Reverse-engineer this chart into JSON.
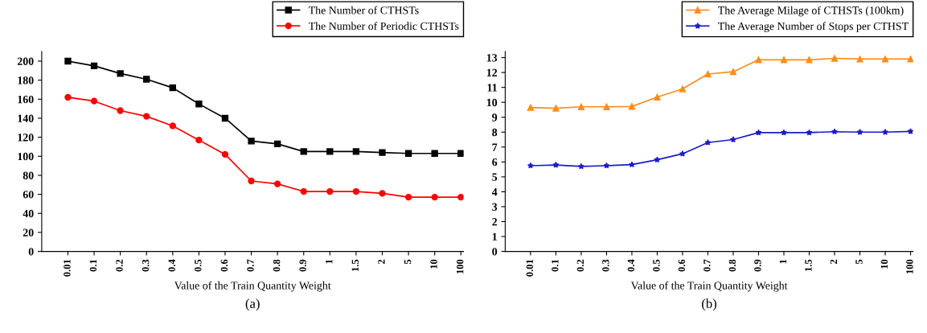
{
  "chart_data": [
    {
      "type": "line",
      "xlabel": "Value of the Train Quantity Weight",
      "annotations": [
        "(a)"
      ],
      "categories": [
        "0.01",
        "0.1",
        "0.2",
        "0.3",
        "0.4",
        "0.5",
        "0.6",
        "0.7",
        "0.8",
        "0.9",
        "1",
        "1.5",
        "2",
        "5",
        "10",
        "100"
      ],
      "series": [
        {
          "name": "The Number of CTHSTs",
          "color": "#000000",
          "marker": "square",
          "values": [
            200,
            195,
            187,
            181,
            172,
            155,
            140,
            116,
            113,
            105,
            105,
            105,
            104,
            103,
            103,
            103
          ]
        },
        {
          "name": "The Number of Periodic CTHSTs",
          "color": "#ff0000",
          "marker": "circle",
          "values": [
            162,
            158,
            148,
            142,
            132,
            117,
            102,
            74,
            71,
            63,
            63,
            63,
            61,
            57,
            57,
            57
          ]
        }
      ],
      "ylim": [
        0,
        210
      ],
      "yticks": [
        0,
        20,
        40,
        60,
        80,
        100,
        120,
        140,
        160,
        180,
        200
      ],
      "grid": false,
      "legend": "top right"
    },
    {
      "type": "line",
      "xlabel": "Value of the Train Quantity Weight",
      "annotations": [
        "(b)"
      ],
      "categories": [
        "0.01",
        "0.1",
        "0.2",
        "0.3",
        "0.4",
        "0.5",
        "0.6",
        "0.7",
        "0.8",
        "0.9",
        "1",
        "1.5",
        "2",
        "5",
        "10",
        "100"
      ],
      "series": [
        {
          "name": "The Average Milage of CTHSTs (100km)",
          "color": "#ff8c1a",
          "marker": "triangle",
          "values": [
            9.65,
            9.6,
            9.7,
            9.7,
            9.72,
            10.35,
            10.9,
            11.9,
            12.05,
            12.85,
            12.85,
            12.85,
            12.95,
            12.9,
            12.9,
            12.9
          ]
        },
        {
          "name": "The Average Number of Stops per CTHST",
          "color": "#1a1acc",
          "marker": "star",
          "values": [
            5.75,
            5.8,
            5.7,
            5.75,
            5.82,
            6.15,
            6.55,
            7.3,
            7.5,
            7.97,
            7.97,
            7.97,
            8.03,
            8.0,
            8.0,
            8.05
          ]
        }
      ],
      "ylim": [
        0,
        13.4
      ],
      "yticks": [
        0,
        1,
        2,
        3,
        4,
        5,
        6,
        7,
        8,
        9,
        10,
        11,
        12,
        13
      ],
      "grid": false,
      "legend": "top right"
    }
  ]
}
